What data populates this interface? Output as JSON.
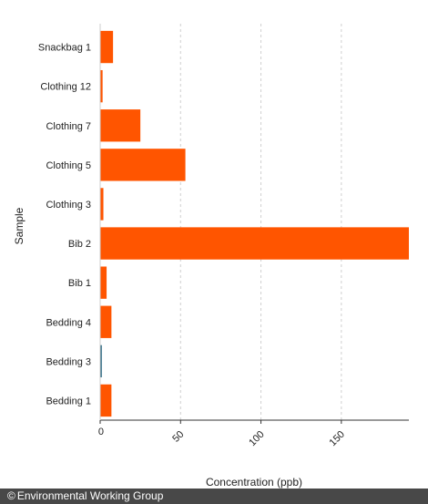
{
  "chart_data": {
    "type": "bar",
    "orientation": "horizontal",
    "categories": [
      "Snackbag 1",
      "Clothing 12",
      "Clothing 7",
      "Clothing 5",
      "Clothing 3",
      "Bib 2",
      "Bib 1",
      "Bedding 4",
      "Bedding 3",
      "Bedding 1"
    ],
    "values": [
      8,
      1.5,
      25,
      53,
      2,
      192,
      4,
      7,
      1,
      7
    ],
    "bar_colors": [
      "#ff5500",
      "#ff5500",
      "#ff5500",
      "#ff5500",
      "#ff5500",
      "#ff5500",
      "#ff5500",
      "#ff5500",
      "#1f5f7a",
      "#ff5500"
    ],
    "xticks": [
      0,
      50,
      100,
      150
    ],
    "xlim": [
      0,
      192
    ],
    "ylabel": "Sample",
    "xlabel": "Concentration (ppb)",
    "grid": "vertical dashed"
  },
  "footer": {
    "credit": "Environmental Working Group",
    "copyright_symbol": "©"
  }
}
